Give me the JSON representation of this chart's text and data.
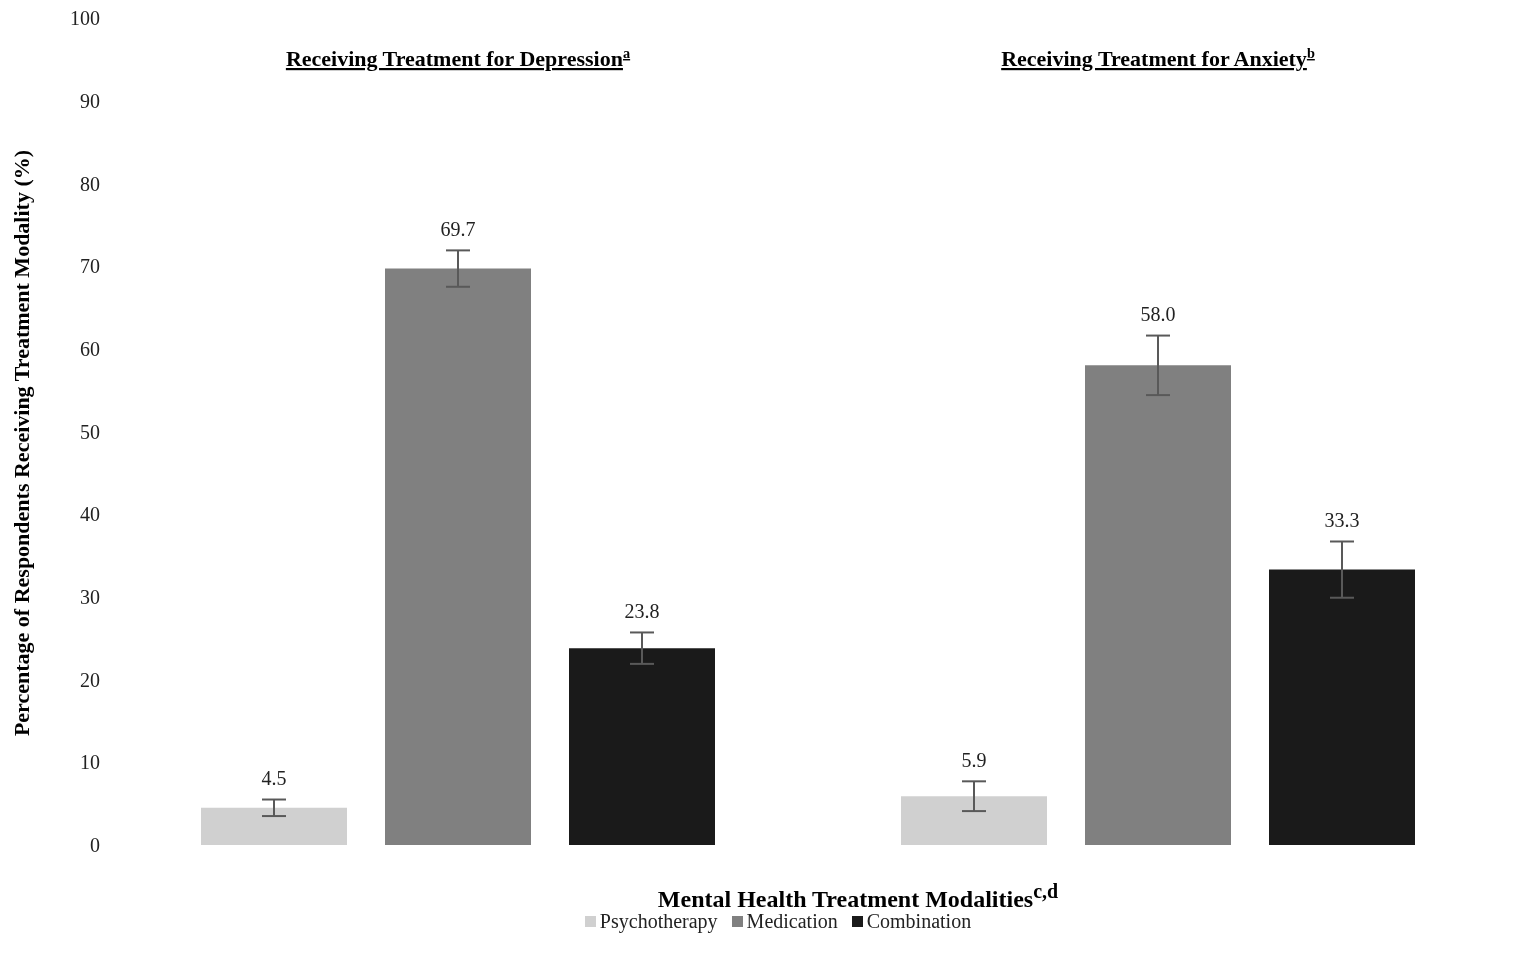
{
  "chart_data": {
    "type": "bar",
    "categories": [
      "Receiving Treatment for Depression$^{a}$",
      "Receiving Treatment for Anxiety$^{b}$"
    ],
    "series": [
      {
        "name": "Psychotherapy",
        "color": "#d0d0d0",
        "values": [
          4.5,
          5.9
        ],
        "errors": [
          1.0,
          1.8
        ],
        "value_labels": [
          "4.5",
          "5.9"
        ]
      },
      {
        "name": "Medication",
        "color": "#808080",
        "values": [
          69.7,
          58.0
        ],
        "errors": [
          2.2,
          3.6
        ],
        "value_labels": [
          "69.7",
          "58.0"
        ]
      },
      {
        "name": "Combination",
        "color": "#1a1a1a",
        "values": [
          23.8,
          33.3
        ],
        "errors": [
          1.9,
          3.4
        ],
        "value_labels": [
          "23.8",
          "33.3"
        ]
      }
    ],
    "xlabel": "Mental Health Treatment Modalities$^{c,d}$",
    "ylabel": "Percentage of Respondents Receiving Treatment Modality (%)",
    "ylim": [
      0,
      100
    ],
    "yticks": [
      0,
      10,
      20,
      30,
      40,
      50,
      60,
      70,
      80,
      90,
      100
    ],
    "grid": false,
    "legend": "bottom"
  }
}
